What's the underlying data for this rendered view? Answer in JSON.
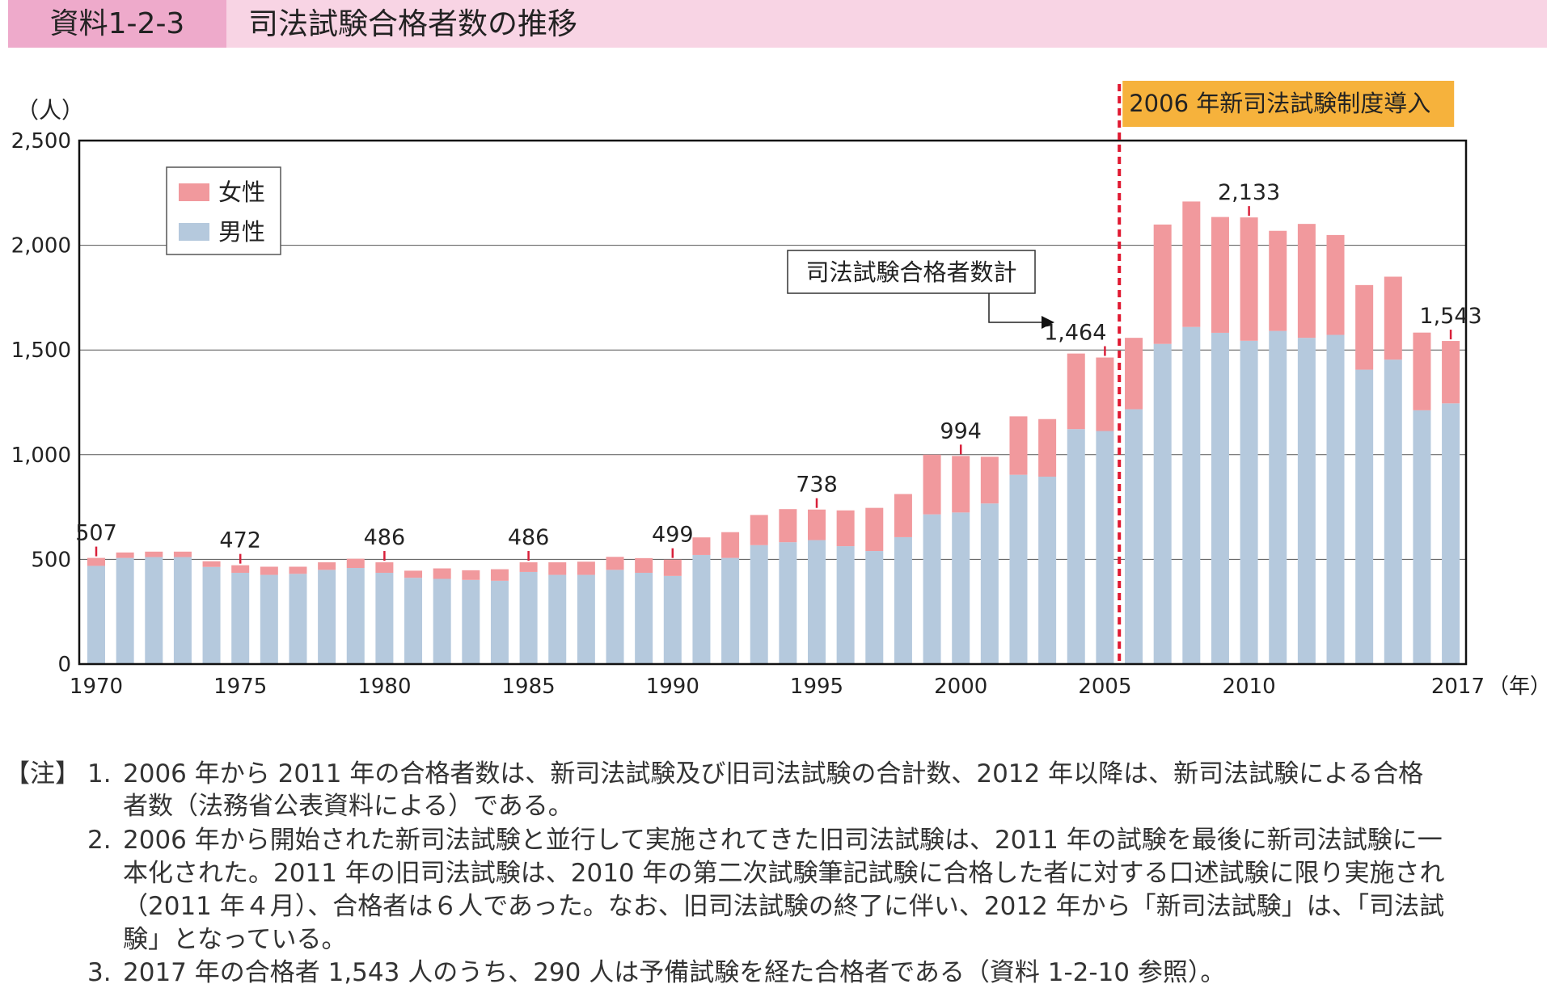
{
  "header": {
    "label": "資料1-2-3",
    "title": "司法試験合格者数の推移"
  },
  "chart_data": {
    "type": "bar",
    "stacked": true,
    "title": "司法試験合格者数の推移",
    "ylabel": "（人）",
    "xlabel": "（年）",
    "ylim": [
      0,
      2500
    ],
    "yticks": [
      "0",
      "500",
      "1,000",
      "1,500",
      "2,000",
      "2,500"
    ],
    "ytick_values": [
      0,
      500,
      1000,
      1500,
      2000,
      2500
    ],
    "xtick_labels": {
      "1970": "1970",
      "1975": "1975",
      "1980": "1980",
      "1985": "1985",
      "1990": "1990",
      "1995": "1995",
      "2000": "2000",
      "2005": "2005",
      "2010": "2010",
      "2017": "2017"
    },
    "grid": true,
    "legend_position": "top-left",
    "categories": [
      1970,
      1971,
      1972,
      1973,
      1974,
      1975,
      1976,
      1977,
      1978,
      1979,
      1980,
      1981,
      1982,
      1983,
      1984,
      1985,
      1986,
      1987,
      1988,
      1989,
      1990,
      1991,
      1992,
      1993,
      1994,
      1995,
      1996,
      1997,
      1998,
      1999,
      2000,
      2001,
      2002,
      2003,
      2004,
      2005,
      2006,
      2007,
      2008,
      2009,
      2010,
      2011,
      2012,
      2013,
      2014,
      2015,
      2016,
      2017
    ],
    "totals": [
      507,
      533,
      537,
      537,
      491,
      472,
      465,
      465,
      486,
      503,
      486,
      446,
      457,
      448,
      453,
      486,
      486,
      489,
      512,
      506,
      499,
      605,
      630,
      712,
      740,
      738,
      734,
      746,
      812,
      1000,
      994,
      990,
      1183,
      1170,
      1483,
      1464,
      1558,
      2099,
      2209,
      2135,
      2133,
      2069,
      2102,
      2049,
      1810,
      1850,
      1583,
      1543
    ],
    "series": [
      {
        "name": "男性",
        "color": "#b5c9dd",
        "values": [
          469,
          507,
          511,
          511,
          464,
          436,
          426,
          431,
          450,
          459,
          436,
          412,
          407,
          402,
          398,
          440,
          426,
          426,
          450,
          436,
          421,
          521,
          507,
          568,
          582,
          592,
          563,
          540,
          606,
          715,
          724,
          767,
          904,
          895,
          1122,
          1113,
          1217,
          1529,
          1610,
          1582,
          1544,
          1591,
          1558,
          1572,
          1406,
          1454,
          1212,
          1245
        ]
      },
      {
        "name": "女性",
        "color": "#f1999d",
        "values": [
          38,
          26,
          26,
          26,
          27,
          36,
          39,
          34,
          36,
          44,
          50,
          34,
          50,
          46,
          55,
          46,
          60,
          63,
          62,
          70,
          78,
          84,
          123,
          144,
          158,
          146,
          171,
          206,
          206,
          285,
          270,
          223,
          279,
          275,
          361,
          351,
          341,
          570,
          599,
          553,
          589,
          478,
          544,
          477,
          404,
          396,
          371,
          298
        ]
      }
    ],
    "data_labels": [
      {
        "year": 1970,
        "text": "507"
      },
      {
        "year": 1975,
        "text": "472"
      },
      {
        "year": 1980,
        "text": "486"
      },
      {
        "year": 1985,
        "text": "486"
      },
      {
        "year": 1990,
        "text": "499"
      },
      {
        "year": 1995,
        "text": "738"
      },
      {
        "year": 2000,
        "text": "994"
      },
      {
        "year": 2005,
        "text": "1,464"
      },
      {
        "year": 2010,
        "text": "2,133"
      },
      {
        "year": 2017,
        "text": "1,543"
      }
    ],
    "annotations": {
      "callout": "司法試験合格者数計",
      "reform": "2006 年新司法試験制度導入",
      "reform_year": 2006
    }
  },
  "notes": {
    "prefix": "【注】",
    "items": [
      {
        "num": "1.",
        "lines": [
          "2006 年から 2011 年の合格者数は、新司法試験及び旧司法試験の合計数、2012 年以降は、新司法試験による合格",
          "者数（法務省公表資料による）である。"
        ]
      },
      {
        "num": "2.",
        "lines": [
          "2006 年から開始された新司法試験と並行して実施されてきた旧司法試験は、2011 年の試験を最後に新司法試験に一",
          "本化された。2011 年の旧司法試験は、2010 年の第二次試験筆記試験に合格した者に対する口述試験に限り実施され",
          "（2011 年４月）、合格者は６人であった。なお、旧司法試験の終了に伴い、2012 年から「新司法試験」は、「司法試",
          "験」となっている。"
        ]
      },
      {
        "num": "3.",
        "lines": [
          "2017 年の合格者 1,543 人のうち、290 人は予備試験を経た合格者である（資料 1-2-10 参照）。"
        ]
      }
    ]
  }
}
